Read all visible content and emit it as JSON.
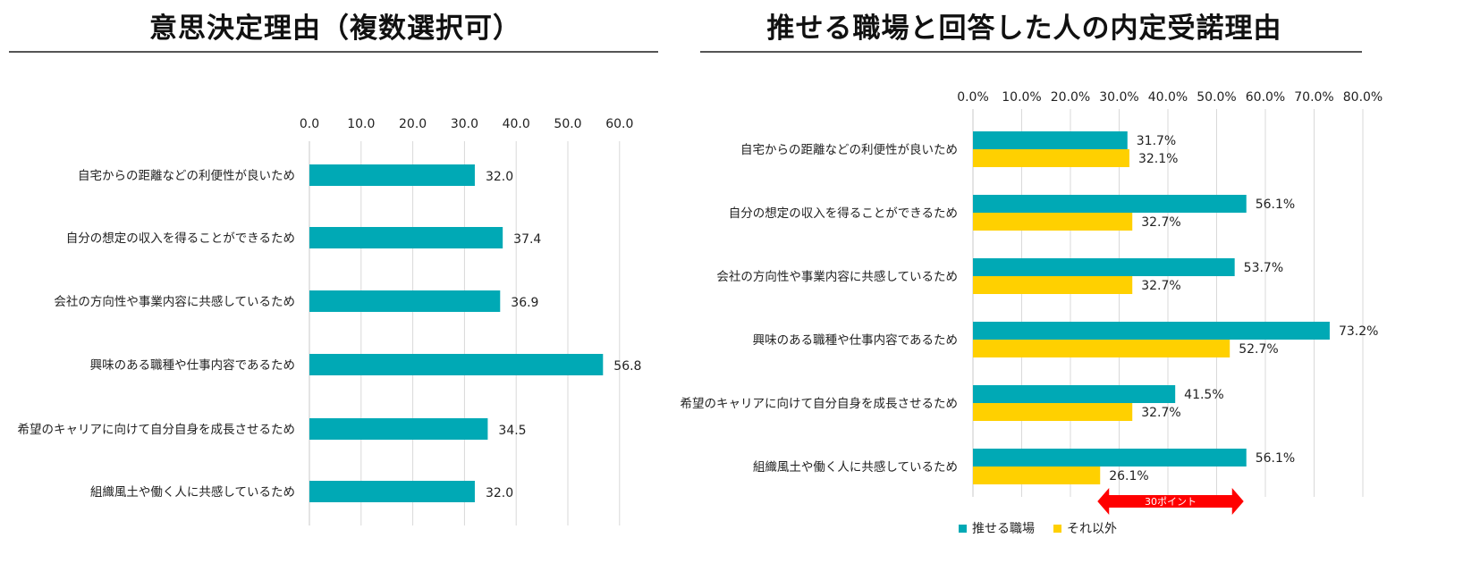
{
  "chart_data": [
    {
      "type": "bar",
      "orientation": "horizontal",
      "title": "意思決定理由（複数選択可）",
      "categories": [
        "自宅からの距離などの利便性が良いため",
        "自分の想定の収入を得ることができるため",
        "会社の方向性や事業内容に共感しているため",
        "興味のある職種や仕事内容であるため",
        "希望のキャリアに向けて自分自身を成長させるため",
        "組織風土や働く人に共感しているため"
      ],
      "values": [
        32.0,
        37.4,
        36.9,
        56.8,
        34.5,
        32.0
      ],
      "value_labels": [
        "32.0",
        "37.4",
        "36.9",
        "56.8",
        "34.5",
        "32.0"
      ],
      "xlim": [
        0,
        60
      ],
      "ticks": [
        "0.0",
        "10.0",
        "20.0",
        "30.0",
        "40.0",
        "50.0",
        "60.0"
      ],
      "axis_position": "top",
      "grid": true,
      "colors": {
        "bar": "#00A9B5"
      }
    },
    {
      "type": "bar",
      "orientation": "horizontal",
      "title": "推せる職場と回答した人の内定受諾理由",
      "categories": [
        "自宅からの距離などの利便性が良いため",
        "自分の想定の収入を得ることができるため",
        "会社の方向性や事業内容に共感しているため",
        "興味のある職種や仕事内容であるため",
        "希望のキャリアに向けて自分自身を成長させるため",
        "組織風土や働く人に共感しているため"
      ],
      "series": [
        {
          "name": "推せる職場",
          "color": "#00A9B5",
          "values": [
            31.7,
            56.1,
            53.7,
            73.2,
            41.5,
            56.1
          ],
          "value_labels": [
            "31.7%",
            "56.1%",
            "53.7%",
            "73.2%",
            "41.5%",
            "56.1%"
          ]
        },
        {
          "name": "それ以外",
          "color": "#FFD000",
          "values": [
            32.1,
            32.7,
            32.7,
            52.7,
            32.7,
            26.1
          ],
          "value_labels": [
            "32.1%",
            "32.7%",
            "32.7%",
            "52.7%",
            "32.7%",
            "26.1%"
          ]
        }
      ],
      "xlim": [
        0,
        80
      ],
      "ticks": [
        "0.0%",
        "10.0%",
        "20.0%",
        "30.0%",
        "40.0%",
        "50.0%",
        "60.0%",
        "70.0%",
        "80.0%"
      ],
      "axis_position": "top",
      "grid": true,
      "legend_position": "bottom-left",
      "annotation": {
        "text": "30ポイント",
        "from_value": 26.1,
        "to_value": 56.1,
        "color": "#FF0000"
      }
    }
  ]
}
